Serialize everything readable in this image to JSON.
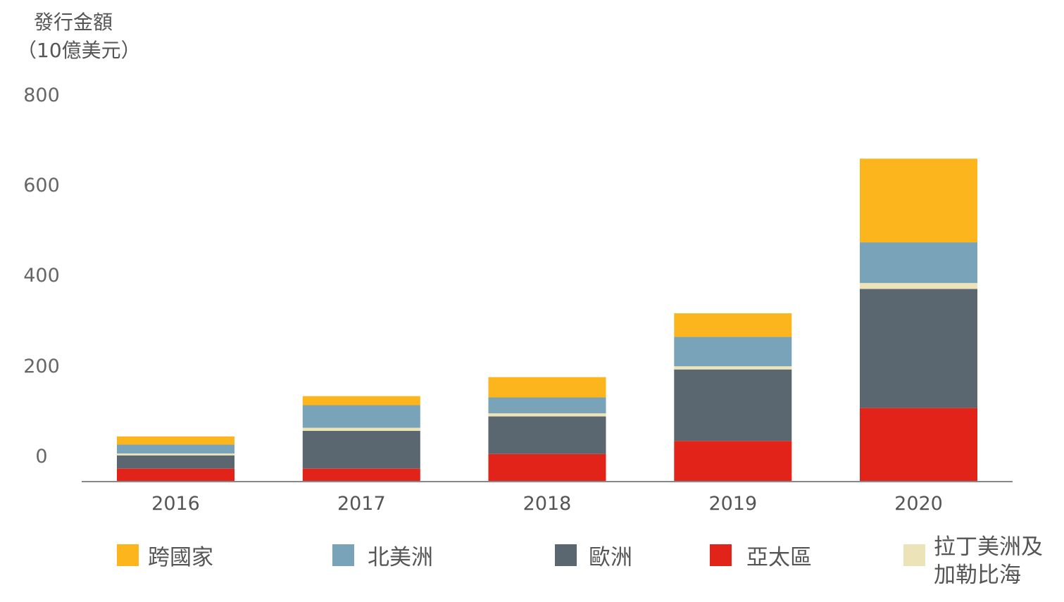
{
  "chart_data": {
    "type": "bar",
    "stacked": true,
    "ylabel": [
      "發行金額",
      "（10億美元）"
    ],
    "y_ticks": [
      "800",
      "600",
      "400",
      "200",
      "0"
    ],
    "ylim": [
      0,
      800
    ],
    "categories": [
      "2016",
      "2017",
      "2018",
      "2019",
      "2020"
    ],
    "series": [
      {
        "name": "亞太區",
        "color": "#e2231a",
        "values": [
          29,
          29,
          61,
          90,
          163
        ]
      },
      {
        "name": "歐洲",
        "color": "#5a6670",
        "values": [
          29,
          83,
          83,
          158,
          263
        ]
      },
      {
        "name": "拉丁美洲及加勒比海",
        "color": "#ede3b8",
        "values": [
          4,
          7,
          7,
          7,
          13
        ]
      },
      {
        "name": "北美洲",
        "color": "#78a3b8",
        "values": [
          20,
          50,
          35,
          65,
          90
        ]
      },
      {
        "name": "跨國家",
        "color": "#fdb51e",
        "values": [
          18,
          20,
          45,
          52,
          185
        ]
      }
    ],
    "legend": {
      "placement": "bottom",
      "items": [
        {
          "label": "跨國家",
          "color": "#fdb51e"
        },
        {
          "label": "北美洲",
          "color": "#78a3b8"
        },
        {
          "label": "歐洲",
          "color": "#5a6670"
        },
        {
          "label": "亞太區",
          "color": "#e2231a"
        },
        {
          "label": [
            "拉丁美洲及",
            "加勒比海"
          ],
          "color": "#ede3b8"
        }
      ]
    },
    "grid": false
  }
}
